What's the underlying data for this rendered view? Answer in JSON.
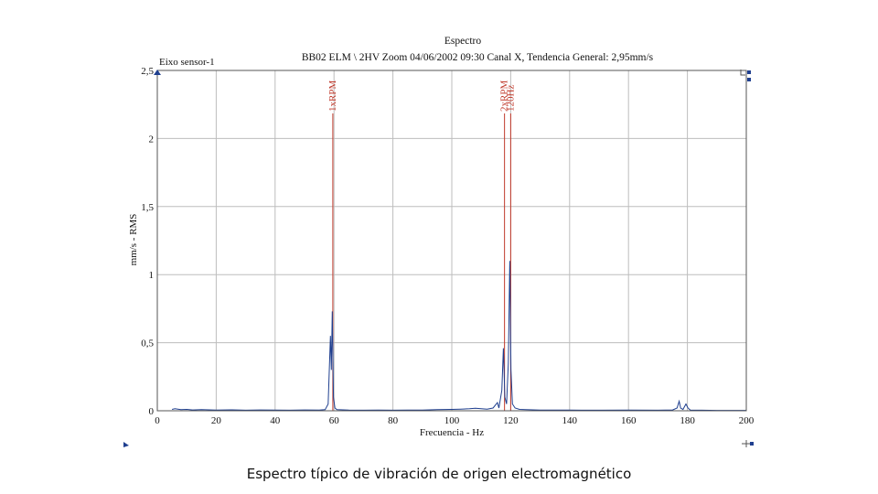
{
  "chart_data": {
    "type": "line",
    "title": "Espectro",
    "subtitle": "BB02 ELM \\ 2HV Zoom 04/06/2002 09:30 Canal X, Tendencia General: 2,95mm/s",
    "panel_label": "Eixo sensor-1",
    "xlabel": "Frecuencia - Hz",
    "ylabel": "mm/s - RMS",
    "xlim": [
      0,
      200
    ],
    "ylim": [
      0,
      2.5
    ],
    "xticks": [
      0,
      20,
      40,
      60,
      80,
      100,
      120,
      140,
      160,
      180,
      200
    ],
    "xtick_labels": [
      "0",
      "20",
      "40",
      "60",
      "80",
      "100",
      "120",
      "140",
      "160",
      "180",
      "200"
    ],
    "yticks": [
      0,
      0.5,
      1,
      1.5,
      2,
      2.5
    ],
    "ytick_labels": [
      "0",
      "0,5",
      "1",
      "1,5",
      "2",
      "2,5"
    ],
    "grid": true,
    "colors": {
      "series": "#1f3f8f",
      "markers": "#c0392b",
      "grid": "#bdbdbd"
    },
    "markers": [
      {
        "label": "1xRPM",
        "x": 59.6
      },
      {
        "label": "2xRPM",
        "x": 117.9
      },
      {
        "label": "120Hz",
        "x": 120.0
      }
    ],
    "series": [
      {
        "values": [
          [
            5,
            0.01
          ],
          [
            6,
            0.015
          ],
          [
            7,
            0.012
          ],
          [
            8,
            0.008
          ],
          [
            10,
            0.01
          ],
          [
            12,
            0.006
          ],
          [
            15,
            0.008
          ],
          [
            20,
            0.005
          ],
          [
            25,
            0.007
          ],
          [
            30,
            0.004
          ],
          [
            35,
            0.006
          ],
          [
            40,
            0.005
          ],
          [
            45,
            0.004
          ],
          [
            50,
            0.006
          ],
          [
            55,
            0.005
          ],
          [
            57,
            0.008
          ],
          [
            58,
            0.05
          ],
          [
            58.8,
            0.55
          ],
          [
            59.1,
            0.3
          ],
          [
            59.4,
            0.73
          ],
          [
            59.8,
            0.1
          ],
          [
            60.3,
            0.02
          ],
          [
            61,
            0.008
          ],
          [
            65,
            0.005
          ],
          [
            70,
            0.004
          ],
          [
            75,
            0.005
          ],
          [
            80,
            0.004
          ],
          [
            85,
            0.005
          ],
          [
            90,
            0.005
          ],
          [
            95,
            0.008
          ],
          [
            100,
            0.01
          ],
          [
            103,
            0.012
          ],
          [
            106,
            0.015
          ],
          [
            108,
            0.018
          ],
          [
            110,
            0.015
          ],
          [
            112,
            0.012
          ],
          [
            114,
            0.02
          ],
          [
            115.5,
            0.06
          ],
          [
            116,
            0.02
          ],
          [
            117,
            0.15
          ],
          [
            117.5,
            0.46
          ],
          [
            118,
            0.1
          ],
          [
            118.6,
            0.05
          ],
          [
            119.2,
            0.35
          ],
          [
            119.7,
            1.1
          ],
          [
            120.1,
            0.3
          ],
          [
            120.6,
            0.05
          ],
          [
            121.5,
            0.02
          ],
          [
            123,
            0.01
          ],
          [
            125,
            0.008
          ],
          [
            130,
            0.005
          ],
          [
            140,
            0.005
          ],
          [
            150,
            0.004
          ],
          [
            160,
            0.005
          ],
          [
            170,
            0.004
          ],
          [
            175,
            0.006
          ],
          [
            176.5,
            0.02
          ],
          [
            177.2,
            0.07
          ],
          [
            177.7,
            0.02
          ],
          [
            178.5,
            0.01
          ],
          [
            179.5,
            0.05
          ],
          [
            180.2,
            0.02
          ],
          [
            181,
            0.005
          ],
          [
            185,
            0.004
          ],
          [
            190,
            0.003
          ],
          [
            195,
            0.003
          ],
          [
            200,
            0.003
          ]
        ]
      }
    ]
  },
  "caption": "Espectro típico de vibración de origen electromagnético"
}
